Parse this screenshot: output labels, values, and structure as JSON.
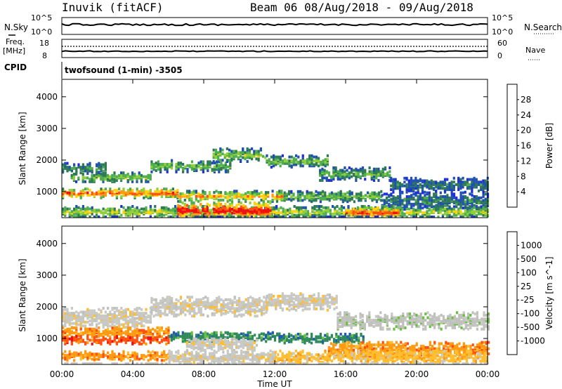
{
  "header": {
    "station": "Inuvik (fitACF)",
    "beam_dates": "Beam 06 08/Aug/2018 - 09/Aug/2018"
  },
  "strip_labels": {
    "nsky": "N.Sky",
    "nsky_top": "10^5",
    "nsky_bottom": "10^0",
    "nsearch": "N.Search",
    "nsearch_top": "10^5",
    "nsearch_bottom": "10^0",
    "freq_line1": "Freq.",
    "freq_line2": "[MHz]",
    "freq_top": "18",
    "freq_bottom": "8",
    "nave": "Nave",
    "nave_top": "60",
    "nave_bottom": "0",
    "cpid": "CPID",
    "cpid_value": "twofsound (1-min) -3505"
  },
  "colors": {
    "power": [
      "#1f2fd6",
      "#2050b0",
      "#2e7a55",
      "#4fae4f",
      "#8fcf3a",
      "#ffd20a",
      "#ff9a10",
      "#ff5010",
      "#ee1010"
    ],
    "velocity": [
      "#ee1010",
      "#ff5010",
      "#ff9a10",
      "#ffbe30",
      "#c8c8c4",
      "#c0c0bc",
      "#68c040",
      "#2e8a5a",
      "#205ab0",
      "#1f2fd6"
    ]
  },
  "chart_data": [
    {
      "type": "heatmap",
      "title": "Power",
      "xlabel": "Time UT",
      "ylabel": "Slant Range [km]",
      "x_ticks": [
        "00:00",
        "04:00",
        "08:00",
        "12:00",
        "16:00",
        "20:00",
        "00:00"
      ],
      "xlim_hours": [
        0,
        24
      ],
      "ylim_km": [
        180,
        4550
      ],
      "y_ticks": [
        1000,
        2000,
        3000,
        4000
      ],
      "colorbar": {
        "label": "Power [dB]",
        "range": [
          0,
          32
        ],
        "ticks": [
          4,
          8,
          12,
          16,
          20,
          24,
          28
        ]
      },
      "echo_bands": [
        {
          "from_h": 0.0,
          "to_h": 2.5,
          "center_km": 1780,
          "width_km": 160,
          "level": 0.35
        },
        {
          "from_h": 0.5,
          "to_h": 5.0,
          "center_km": 1500,
          "width_km": 140,
          "level": 0.5
        },
        {
          "from_h": 5.0,
          "to_h": 9.5,
          "center_km": 1850,
          "width_km": 180,
          "level": 0.45
        },
        {
          "from_h": 8.5,
          "to_h": 11.5,
          "center_km": 2200,
          "width_km": 200,
          "level": 0.5
        },
        {
          "from_h": 11.5,
          "to_h": 15.0,
          "center_km": 2000,
          "width_km": 180,
          "level": 0.45
        },
        {
          "from_h": 14.5,
          "to_h": 18.5,
          "center_km": 1600,
          "width_km": 200,
          "level": 0.4
        },
        {
          "from_h": 18.5,
          "to_h": 24.0,
          "center_km": 1250,
          "width_km": 220,
          "level": 0.25
        },
        {
          "from_h": 0.0,
          "to_h": 6.5,
          "center_km": 1000,
          "width_km": 150,
          "level": 0.85
        },
        {
          "from_h": 6.5,
          "to_h": 12.5,
          "center_km": 900,
          "width_km": 160,
          "level": 0.7
        },
        {
          "from_h": 12.5,
          "to_h": 18.0,
          "center_km": 900,
          "width_km": 170,
          "level": 0.45
        },
        {
          "from_h": 18.0,
          "to_h": 24.0,
          "center_km": 750,
          "width_km": 260,
          "level": 0.3
        },
        {
          "from_h": 0.0,
          "to_h": 24.0,
          "center_km": 400,
          "width_km": 180,
          "level": 0.55
        },
        {
          "from_h": 6.5,
          "to_h": 11.8,
          "center_km": 450,
          "width_km": 280,
          "level": 1.0
        },
        {
          "from_h": 16.0,
          "to_h": 19.0,
          "center_km": 380,
          "width_km": 200,
          "level": 0.85
        }
      ]
    },
    {
      "type": "heatmap",
      "title": "Velocity",
      "xlabel": "Time UT",
      "ylabel": "Slant Range [km]",
      "x_ticks": [
        "00:00",
        "04:00",
        "08:00",
        "12:00",
        "16:00",
        "20:00",
        "00:00"
      ],
      "xlim_hours": [
        0,
        24
      ],
      "ylim_km": [
        180,
        4550
      ],
      "y_ticks": [
        1000,
        2000,
        3000,
        4000
      ],
      "colorbar": {
        "label": "Velocity [m s^-1]",
        "ticks": [
          "1000",
          "500",
          "100",
          "25",
          "-25",
          "-100",
          "-500",
          "-1000"
        ]
      },
      "echo_bands": [
        {
          "from_h": 0.0,
          "to_h": 5.0,
          "center_km": 1700,
          "width_km": 300,
          "level": 4
        },
        {
          "from_h": 5.0,
          "to_h": 11.5,
          "center_km": 2050,
          "width_km": 300,
          "level": 4
        },
        {
          "from_h": 11.5,
          "to_h": 15.5,
          "center_km": 2200,
          "width_km": 260,
          "level": 4
        },
        {
          "from_h": 15.5,
          "to_h": 24.0,
          "center_km": 1600,
          "width_km": 260,
          "level": 5
        },
        {
          "from_h": 0.0,
          "to_h": 6.0,
          "center_km": 1250,
          "width_km": 150,
          "level": 2
        },
        {
          "from_h": 0.0,
          "to_h": 6.0,
          "center_km": 1000,
          "width_km": 130,
          "level": 1
        },
        {
          "from_h": 6.0,
          "to_h": 12.5,
          "center_km": 1100,
          "width_km": 150,
          "level": 7
        },
        {
          "from_h": 7.0,
          "to_h": 11.0,
          "center_km": 850,
          "width_km": 180,
          "level": 4
        },
        {
          "from_h": 12.5,
          "to_h": 17.0,
          "center_km": 1050,
          "width_km": 150,
          "level": 7
        },
        {
          "from_h": 15.0,
          "to_h": 24.0,
          "center_km": 700,
          "width_km": 220,
          "level": 2
        },
        {
          "from_h": 0.0,
          "to_h": 6.0,
          "center_km": 500,
          "width_km": 150,
          "level": 2
        },
        {
          "from_h": 6.0,
          "to_h": 12.0,
          "center_km": 450,
          "width_km": 200,
          "level": 4
        },
        {
          "from_h": 12.0,
          "to_h": 24.0,
          "center_km": 450,
          "width_km": 200,
          "level": 3
        }
      ]
    }
  ]
}
